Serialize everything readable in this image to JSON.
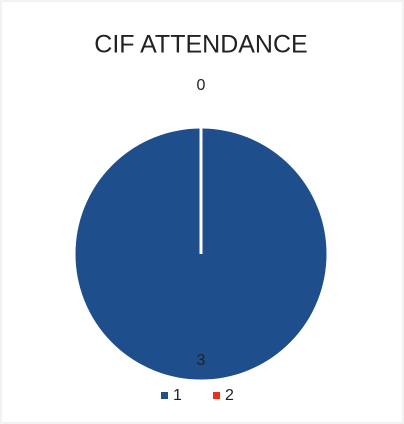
{
  "chart_data": {
    "type": "pie",
    "title": "CIF ATTENDANCE",
    "categories": [
      "1",
      "2"
    ],
    "values": [
      3,
      0
    ],
    "colors": [
      "#1f4e8c",
      "#e8301c"
    ],
    "legend": "bottom"
  }
}
